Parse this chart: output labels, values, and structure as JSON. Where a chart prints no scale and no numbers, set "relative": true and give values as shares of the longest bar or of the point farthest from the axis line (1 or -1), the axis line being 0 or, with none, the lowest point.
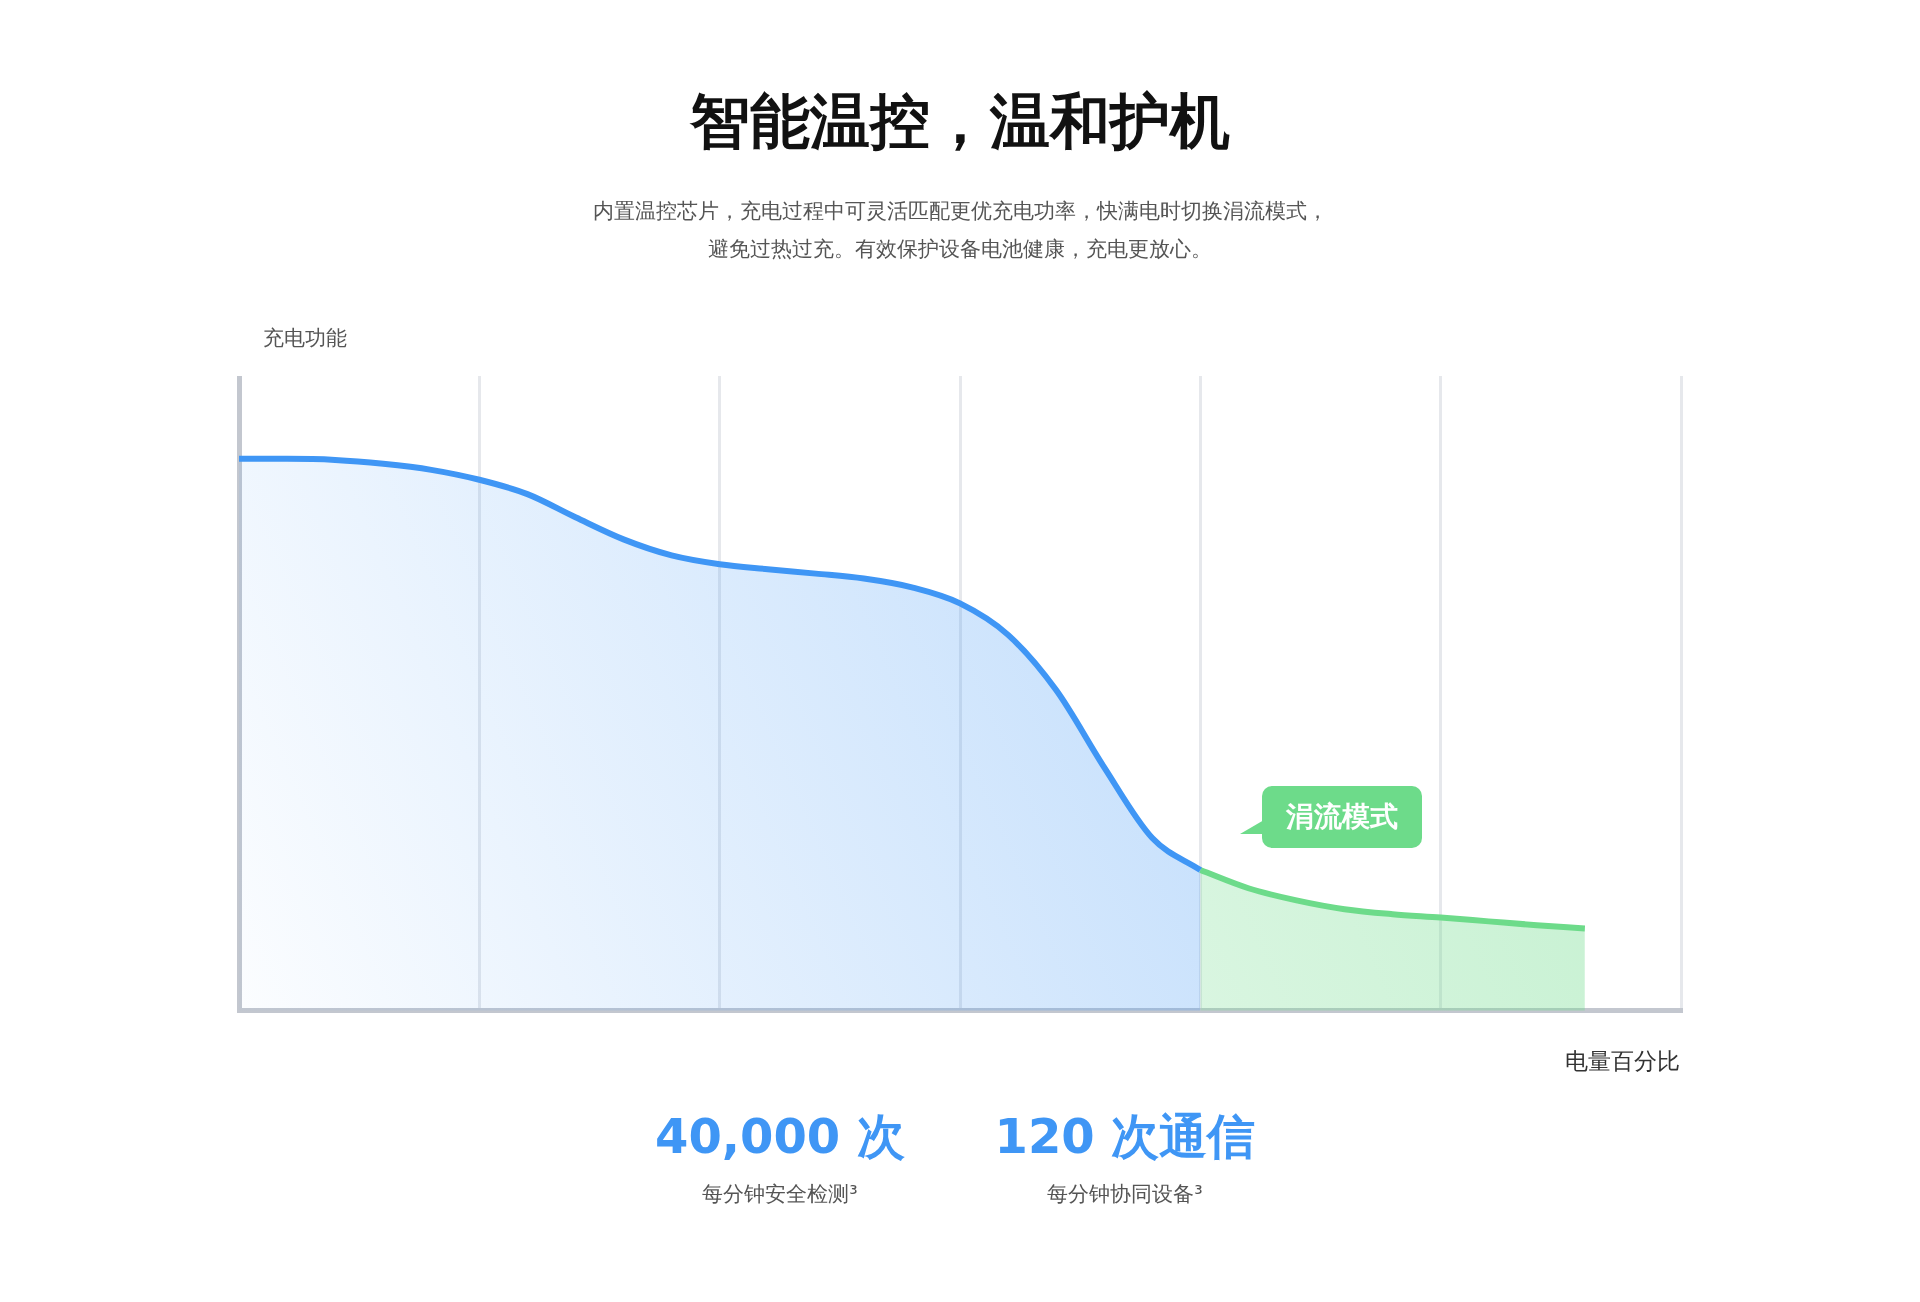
{
  "chart_data": {
    "type": "area",
    "title": "智能温控，温和护机",
    "subtitle": "内置温控芯片，充电过程中可灵活匹配更优充电功率，快满电时切换涓流模式，避免过热过充。有效保护设备电池健康，充电更放心。",
    "xlabel": "电量百分比",
    "relative": true,
    "grid": "x",
    "legend": false,
    "categories": [
      null,
      null,
      null,
      null,
      null,
      null,
      null,
      null,
      null,
      null,
      null,
      null,
      null,
      null,
      null,
      null,
      null,
      null,
      null,
      null,
      null,
      null,
      null,
      null,
      null,
      null,
      null,
      null,
      null,
      null,
      null
    ],
    "series": [
      {
        "color": "#3f96f5",
        "values": [
          1.0,
          1.0,
          0.998,
          0.991,
          0.98,
          0.962,
          0.936,
          0.894,
          0.854,
          0.825,
          0.809,
          0.8,
          0.792,
          0.783,
          0.767,
          0.738,
          0.681,
          0.581,
          0.441,
          0.313,
          0.255,
          null,
          null,
          null,
          null,
          null,
          null,
          null,
          null,
          null,
          null
        ]
      },
      {
        "color": "#6ddb8a",
        "values": [
          null,
          null,
          null,
          null,
          null,
          null,
          null,
          null,
          null,
          null,
          null,
          null,
          null,
          null,
          null,
          null,
          null,
          null,
          null,
          null,
          0.255,
          0.222,
          0.2,
          0.184,
          0.175,
          0.169,
          0.162,
          0.155,
          0.149,
          null,
          null
        ]
      }
    ],
    "annotations": [
      "充电功能",
      "涓流模式",
      "40,000 次",
      "每分钟安全检测³",
      "120 次通信",
      "每分钟协同设备³"
    ]
  }
}
